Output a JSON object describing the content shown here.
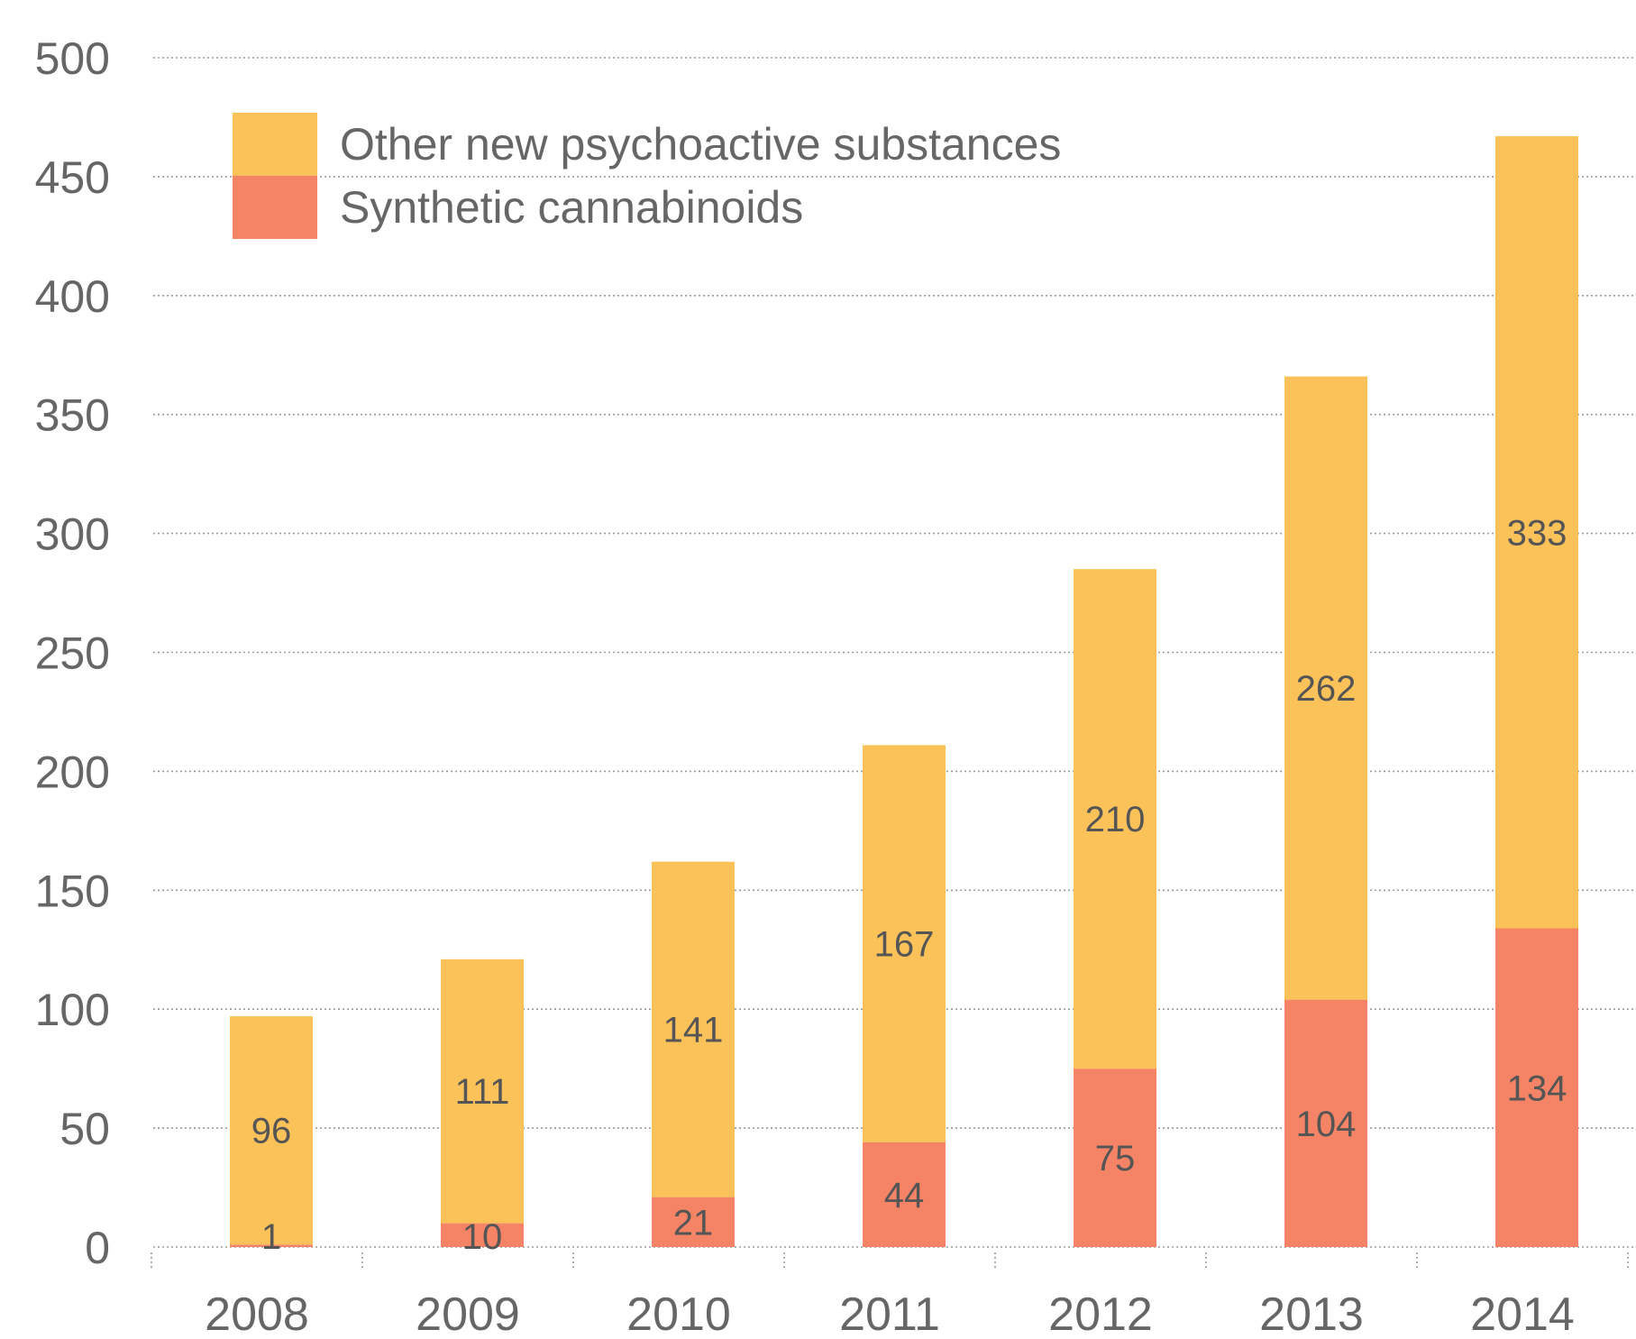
{
  "chart_data": {
    "type": "bar",
    "stacked": true,
    "categories": [
      "2008",
      "2009",
      "2010",
      "2011",
      "2012",
      "2013",
      "2014"
    ],
    "series": [
      {
        "name": "Synthetic cannabinoids",
        "values": [
          1,
          10,
          21,
          44,
          75,
          104,
          134
        ],
        "color": "#f48465"
      },
      {
        "name": "Other new psychoactive substances",
        "values": [
          96,
          111,
          141,
          167,
          210,
          262,
          333
        ],
        "color": "#fbc259"
      }
    ],
    "ylim": [
      0,
      500
    ],
    "yticks": [
      0,
      50,
      100,
      150,
      200,
      250,
      300,
      350,
      400,
      450,
      500
    ],
    "grid": true,
    "legend_position": "top-left",
    "data_labels": true
  }
}
